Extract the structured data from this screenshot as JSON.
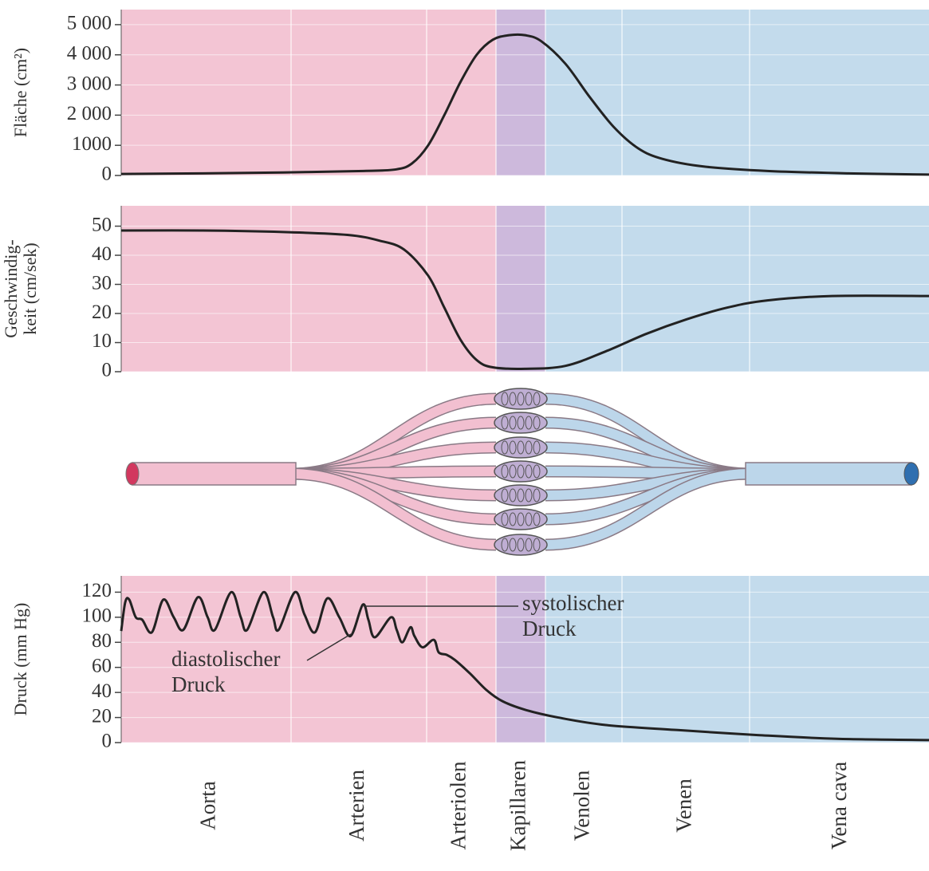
{
  "chart_data": [
    {
      "type": "line",
      "ylabel": [
        "Fläche (cm²)"
      ],
      "xlim": [
        0,
        100
      ],
      "ylim": [
        0,
        5500
      ],
      "yticks": [
        0,
        1000,
        {
          "value": 2000,
          "label": "2 000"
        },
        {
          "value": 3000,
          "label": "3 000"
        },
        {
          "value": 4000,
          "label": "4 000"
        },
        {
          "value": 5000,
          "label": "5 000"
        }
      ],
      "grid": true,
      "bands": [
        {
          "from": 0,
          "to": 46.4,
          "color": "#f3c5d4"
        },
        {
          "from": 46.4,
          "to": 52.5,
          "color": "#cdb9dc"
        },
        {
          "from": 52.5,
          "to": 100,
          "color": "#c3dbec"
        }
      ],
      "series": [
        {
          "color": "#222222",
          "x": [
            0,
            10,
            20,
            30,
            34,
            36,
            38,
            40,
            42,
            44,
            46,
            48,
            50,
            52,
            55,
            58,
            61,
            64,
            67,
            72,
            80,
            90,
            100
          ],
          "values": [
            50,
            70,
            100,
            150,
            200,
            400,
            1000,
            2000,
            3100,
            4000,
            4500,
            4650,
            4650,
            4450,
            3700,
            2600,
            1600,
            900,
            550,
            300,
            150,
            70,
            30
          ]
        }
      ]
    },
    {
      "type": "line",
      "ylabel": [
        "Geschwindig-",
        "keit (cm/sek)"
      ],
      "xlim": [
        0,
        100
      ],
      "ylim": [
        0,
        57
      ],
      "yticks": [
        0,
        10,
        20,
        30,
        40,
        50
      ],
      "grid": true,
      "bands": [
        {
          "from": 0,
          "to": 46.4,
          "color": "#f3c5d4"
        },
        {
          "from": 46.4,
          "to": 52.5,
          "color": "#cdb9dc"
        },
        {
          "from": 52.5,
          "to": 100,
          "color": "#c3dbec"
        }
      ],
      "series": [
        {
          "color": "#222222",
          "x": [
            0,
            10,
            20,
            28,
            32,
            35,
            38,
            40,
            42,
            44,
            46,
            50,
            55,
            60,
            65,
            70,
            75,
            80,
            88,
            100
          ],
          "values": [
            48.5,
            48.5,
            48,
            47,
            45,
            42,
            33,
            22,
            11,
            4,
            1.5,
            1,
            2,
            7,
            13,
            18,
            22,
            24.5,
            26,
            26
          ]
        }
      ]
    },
    {
      "type": "line",
      "ylabel": [
        "Druck (mm Hg)"
      ],
      "xlim": [
        0,
        100
      ],
      "ylim": [
        0,
        133
      ],
      "yticks": [
        0,
        20,
        40,
        60,
        80,
        100,
        120
      ],
      "grid": true,
      "bands": [
        {
          "from": 0,
          "to": 46.4,
          "color": "#f3c5d4"
        },
        {
          "from": 46.4,
          "to": 52.5,
          "color": "#cdb9dc"
        },
        {
          "from": 52.5,
          "to": 100,
          "color": "#c3dbec"
        }
      ],
      "xticks": [
        {
          "value": 11,
          "label": "Aorta"
        },
        {
          "value": 29.4,
          "label": "Arterien"
        },
        {
          "value": 42,
          "label": "Arteriolen"
        },
        {
          "value": 49.4,
          "label": "Kapillaren"
        },
        {
          "value": 57.3,
          "label": "Venolen"
        },
        {
          "value": 69.9,
          "label": "Venen"
        },
        {
          "value": 89.1,
          "label": "Vena cava"
        }
      ],
      "annotations": [
        [
          "systolischer",
          "Druck"
        ],
        [
          "diastolischer",
          "Druck"
        ]
      ],
      "series": [
        {
          "color": "#222222",
          "x": [
            0,
            0.5,
            1,
            1.8,
            2.6,
            3.8,
            5.2,
            6.5,
            7.7,
            9.5,
            10.7,
            11.6,
            13.6,
            14.8,
            15.6,
            17.6,
            18.8,
            19.5,
            21.5,
            22.7,
            24,
            25.5,
            27,
            28.4,
            29.9,
            30.6,
            31.4,
            33.4,
            34.1,
            34.8,
            35.8,
            36.3,
            37.3,
            38.7,
            39.3,
            40.3,
            41.3,
            43.2,
            45.2,
            47.2,
            50.1,
            54.1,
            60,
            68.9,
            78.8,
            88.6,
            100
          ],
          "values": [
            89,
            112,
            114,
            100,
            98,
            88,
            114,
            100,
            90,
            116,
            100,
            90,
            120,
            100,
            90,
            120,
            100,
            90,
            120,
            102,
            88,
            115,
            100,
            85,
            110,
            98,
            84,
            100,
            90,
            80,
            92,
            85,
            76,
            82,
            72,
            70,
            66,
            55,
            42,
            33,
            26,
            20,
            14,
            10,
            6,
            3,
            2
          ]
        }
      ]
    }
  ]
}
